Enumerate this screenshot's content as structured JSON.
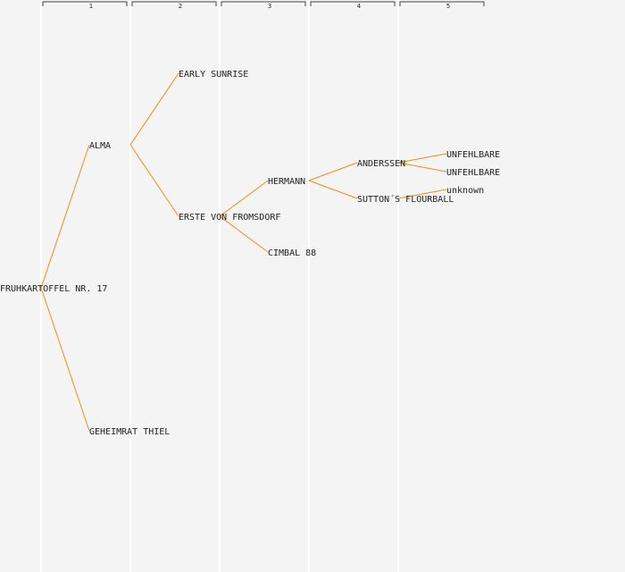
{
  "generations": [
    "1",
    "2",
    "3",
    "4",
    "5"
  ],
  "colors": {
    "edge": "#f08a1a",
    "background": "#f4f4f4",
    "text": "#222222"
  },
  "nodes": [
    {
      "id": "n0",
      "label": "FRUHKARTOFFEL NR. 17",
      "gen": 0,
      "row": 16
    },
    {
      "id": "n1",
      "label": "ALMA",
      "gen": 1,
      "row": 8
    },
    {
      "id": "n2",
      "label": "GEHEIMRAT THIEL",
      "gen": 1,
      "row": 24
    },
    {
      "id": "n3",
      "label": "EARLY SUNRISE",
      "gen": 2,
      "row": 4
    },
    {
      "id": "n4",
      "label": "ERSTE VON FROMSDORF",
      "gen": 2,
      "row": 12
    },
    {
      "id": "n5",
      "label": "HERMANN",
      "gen": 3,
      "row": 10
    },
    {
      "id": "n6",
      "label": "CIMBAL 88",
      "gen": 3,
      "row": 14
    },
    {
      "id": "n7",
      "label": "ANDERSSEN",
      "gen": 4,
      "row": 9
    },
    {
      "id": "n8",
      "label": "SUTTON´S FLOURBALL",
      "gen": 4,
      "row": 11
    },
    {
      "id": "n9",
      "label": "UNFEHLBARE",
      "gen": 5,
      "row": 8.5
    },
    {
      "id": "n10",
      "label": "UNFEHLBARE",
      "gen": 5,
      "row": 9.5
    },
    {
      "id": "n11",
      "label": "unknown",
      "gen": 5,
      "row": 10.5
    }
  ],
  "edges": [
    [
      "n0",
      "n1"
    ],
    [
      "n0",
      "n2"
    ],
    [
      "n1",
      "n3"
    ],
    [
      "n1",
      "n4"
    ],
    [
      "n4",
      "n5"
    ],
    [
      "n4",
      "n6"
    ],
    [
      "n5",
      "n7"
    ],
    [
      "n5",
      "n8"
    ],
    [
      "n7",
      "n9"
    ],
    [
      "n7",
      "n10"
    ],
    [
      "n8",
      "n11"
    ]
  ]
}
